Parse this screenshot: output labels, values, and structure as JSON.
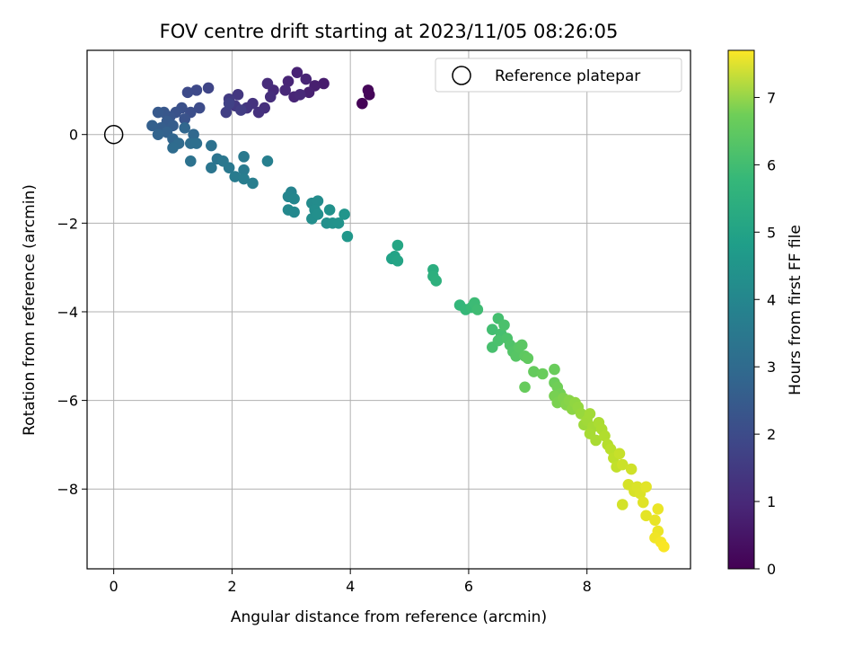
{
  "chart_data": {
    "type": "scatter",
    "title": "FOV centre drift starting at 2023/11/05 08:26:05",
    "xlabel": "Angular distance from reference (arcmin)",
    "ylabel": "Rotation from reference (arcmin)",
    "colorbar_label": "Hours from first FF file",
    "xlim": [
      -0.45,
      9.75
    ],
    "ylim": [
      -9.8,
      1.9
    ],
    "x_ticks": [
      0,
      2,
      4,
      6,
      8
    ],
    "y_ticks": [
      0,
      -2,
      -4,
      -6,
      -8
    ],
    "colorbar_range": [
      0,
      7.7
    ],
    "colorbar_ticks": [
      0,
      1,
      2,
      3,
      4,
      5,
      6,
      7
    ],
    "colormap": "viridis",
    "grid": true,
    "legend": {
      "position": "top-right",
      "entries": [
        "Reference platepar"
      ]
    },
    "reference_point": {
      "x": 0,
      "y": 0
    },
    "points": [
      {
        "x": 4.2,
        "y": 0.7,
        "t": 0.05
      },
      {
        "x": 4.32,
        "y": 0.9,
        "t": 0.1
      },
      {
        "x": 4.3,
        "y": 1.0,
        "t": 0.12
      },
      {
        "x": 3.55,
        "y": 1.15,
        "t": 0.6
      },
      {
        "x": 3.4,
        "y": 1.1,
        "t": 0.65
      },
      {
        "x": 3.3,
        "y": 0.95,
        "t": 0.7
      },
      {
        "x": 3.1,
        "y": 1.4,
        "t": 0.75
      },
      {
        "x": 3.25,
        "y": 1.25,
        "t": 0.78
      },
      {
        "x": 2.95,
        "y": 1.2,
        "t": 0.8
      },
      {
        "x": 3.05,
        "y": 0.85,
        "t": 0.82
      },
      {
        "x": 2.9,
        "y": 1.0,
        "t": 0.85
      },
      {
        "x": 3.15,
        "y": 0.9,
        "t": 0.88
      },
      {
        "x": 2.7,
        "y": 1.0,
        "t": 0.9
      },
      {
        "x": 2.6,
        "y": 1.15,
        "t": 0.95
      },
      {
        "x": 2.65,
        "y": 0.85,
        "t": 1.0
      },
      {
        "x": 2.55,
        "y": 0.6,
        "t": 1.05
      },
      {
        "x": 2.45,
        "y": 0.5,
        "t": 1.1
      },
      {
        "x": 2.35,
        "y": 0.7,
        "t": 1.15
      },
      {
        "x": 2.25,
        "y": 0.6,
        "t": 1.2
      },
      {
        "x": 2.1,
        "y": 0.9,
        "t": 1.25
      },
      {
        "x": 2.05,
        "y": 0.65,
        "t": 1.3
      },
      {
        "x": 1.95,
        "y": 0.8,
        "t": 1.35
      },
      {
        "x": 2.15,
        "y": 0.55,
        "t": 1.4
      },
      {
        "x": 1.9,
        "y": 0.5,
        "t": 1.45
      },
      {
        "x": 1.95,
        "y": 0.7,
        "t": 1.5
      },
      {
        "x": 1.6,
        "y": 1.05,
        "t": 1.6
      },
      {
        "x": 1.4,
        "y": 1.0,
        "t": 1.7
      },
      {
        "x": 1.25,
        "y": 0.95,
        "t": 1.75
      },
      {
        "x": 1.45,
        "y": 0.6,
        "t": 1.8
      },
      {
        "x": 1.3,
        "y": 0.5,
        "t": 1.85
      },
      {
        "x": 1.15,
        "y": 0.6,
        "t": 1.9
      },
      {
        "x": 1.05,
        "y": 0.5,
        "t": 1.95
      },
      {
        "x": 1.2,
        "y": 0.35,
        "t": 2.0
      },
      {
        "x": 0.95,
        "y": 0.4,
        "t": 2.05
      },
      {
        "x": 0.85,
        "y": 0.5,
        "t": 2.1
      },
      {
        "x": 0.75,
        "y": 0.5,
        "t": 2.15
      },
      {
        "x": 0.9,
        "y": 0.3,
        "t": 2.2
      },
      {
        "x": 1.0,
        "y": 0.2,
        "t": 2.25
      },
      {
        "x": 0.8,
        "y": 0.15,
        "t": 2.3
      },
      {
        "x": 0.65,
        "y": 0.2,
        "t": 2.35
      },
      {
        "x": 0.9,
        "y": 0.05,
        "t": 2.4
      },
      {
        "x": 0.75,
        "y": 0.0,
        "t": 2.45
      },
      {
        "x": 1.0,
        "y": -0.1,
        "t": 2.5
      },
      {
        "x": 1.2,
        "y": 0.15,
        "t": 2.55
      },
      {
        "x": 1.35,
        "y": 0.0,
        "t": 2.6
      },
      {
        "x": 1.1,
        "y": -0.2,
        "t": 2.65
      },
      {
        "x": 1.0,
        "y": -0.3,
        "t": 2.7
      },
      {
        "x": 1.3,
        "y": -0.2,
        "t": 2.75
      },
      {
        "x": 1.4,
        "y": -0.2,
        "t": 2.8
      },
      {
        "x": 1.65,
        "y": -0.25,
        "t": 2.85
      },
      {
        "x": 1.3,
        "y": -0.6,
        "t": 2.9
      },
      {
        "x": 1.75,
        "y": -0.55,
        "t": 2.95
      },
      {
        "x": 1.65,
        "y": -0.75,
        "t": 3.0
      },
      {
        "x": 1.85,
        "y": -0.6,
        "t": 3.05
      },
      {
        "x": 1.95,
        "y": -0.75,
        "t": 3.1
      },
      {
        "x": 2.2,
        "y": -0.5,
        "t": 3.12
      },
      {
        "x": 2.2,
        "y": -0.8,
        "t": 3.15
      },
      {
        "x": 2.05,
        "y": -0.95,
        "t": 3.2
      },
      {
        "x": 2.2,
        "y": -1.0,
        "t": 3.25
      },
      {
        "x": 2.35,
        "y": -1.1,
        "t": 3.3
      },
      {
        "x": 2.6,
        "y": -0.6,
        "t": 3.32
      },
      {
        "x": 3.0,
        "y": -1.3,
        "t": 3.45
      },
      {
        "x": 2.95,
        "y": -1.4,
        "t": 3.5
      },
      {
        "x": 3.05,
        "y": -1.45,
        "t": 3.55
      },
      {
        "x": 2.95,
        "y": -1.7,
        "t": 3.6
      },
      {
        "x": 3.05,
        "y": -1.75,
        "t": 3.62
      },
      {
        "x": 3.35,
        "y": -1.55,
        "t": 3.7
      },
      {
        "x": 3.45,
        "y": -1.5,
        "t": 3.72
      },
      {
        "x": 3.4,
        "y": -1.7,
        "t": 3.75
      },
      {
        "x": 3.35,
        "y": -1.9,
        "t": 3.8
      },
      {
        "x": 3.45,
        "y": -1.8,
        "t": 3.82
      },
      {
        "x": 3.6,
        "y": -2.0,
        "t": 3.85
      },
      {
        "x": 3.65,
        "y": -1.7,
        "t": 3.88
      },
      {
        "x": 3.7,
        "y": -2.0,
        "t": 3.9
      },
      {
        "x": 3.8,
        "y": -2.0,
        "t": 3.95
      },
      {
        "x": 3.9,
        "y": -1.8,
        "t": 4.0
      },
      {
        "x": 3.95,
        "y": -2.3,
        "t": 4.05
      },
      {
        "x": 4.7,
        "y": -2.8,
        "t": 4.4
      },
      {
        "x": 4.75,
        "y": -2.75,
        "t": 4.45
      },
      {
        "x": 4.8,
        "y": -2.85,
        "t": 4.5
      },
      {
        "x": 4.8,
        "y": -2.5,
        "t": 4.55
      },
      {
        "x": 5.4,
        "y": -3.05,
        "t": 4.8
      },
      {
        "x": 5.4,
        "y": -3.2,
        "t": 4.85
      },
      {
        "x": 5.45,
        "y": -3.3,
        "t": 4.9
      },
      {
        "x": 5.85,
        "y": -3.85,
        "t": 5.1
      },
      {
        "x": 5.95,
        "y": -3.95,
        "t": 5.15
      },
      {
        "x": 6.05,
        "y": -3.9,
        "t": 5.2
      },
      {
        "x": 6.1,
        "y": -3.8,
        "t": 5.25
      },
      {
        "x": 6.15,
        "y": -3.95,
        "t": 5.3
      },
      {
        "x": 6.4,
        "y": -4.4,
        "t": 5.35
      },
      {
        "x": 6.5,
        "y": -4.15,
        "t": 5.38
      },
      {
        "x": 6.55,
        "y": -4.5,
        "t": 5.4
      },
      {
        "x": 6.4,
        "y": -4.8,
        "t": 5.42
      },
      {
        "x": 6.5,
        "y": -4.65,
        "t": 5.45
      },
      {
        "x": 6.6,
        "y": -4.3,
        "t": 5.48
      },
      {
        "x": 6.65,
        "y": -4.6,
        "t": 5.5
      },
      {
        "x": 6.7,
        "y": -4.75,
        "t": 5.55
      },
      {
        "x": 6.75,
        "y": -4.9,
        "t": 5.6
      },
      {
        "x": 6.8,
        "y": -5.0,
        "t": 5.65
      },
      {
        "x": 6.85,
        "y": -4.8,
        "t": 5.68
      },
      {
        "x": 6.9,
        "y": -4.75,
        "t": 5.7
      },
      {
        "x": 6.95,
        "y": -5.0,
        "t": 5.75
      },
      {
        "x": 7.0,
        "y": -5.05,
        "t": 5.8
      },
      {
        "x": 7.1,
        "y": -5.35,
        "t": 5.85
      },
      {
        "x": 6.95,
        "y": -5.7,
        "t": 5.88
      },
      {
        "x": 7.25,
        "y": -5.4,
        "t": 5.9
      },
      {
        "x": 7.45,
        "y": -5.3,
        "t": 5.92
      },
      {
        "x": 7.45,
        "y": -5.6,
        "t": 5.95
      },
      {
        "x": 7.5,
        "y": -5.7,
        "t": 6.0
      },
      {
        "x": 7.55,
        "y": -5.85,
        "t": 6.05
      },
      {
        "x": 7.45,
        "y": -5.9,
        "t": 6.1
      },
      {
        "x": 7.5,
        "y": -6.05,
        "t": 6.15
      },
      {
        "x": 7.6,
        "y": -5.95,
        "t": 6.2
      },
      {
        "x": 7.65,
        "y": -6.1,
        "t": 6.25
      },
      {
        "x": 7.7,
        "y": -6.0,
        "t": 6.3
      },
      {
        "x": 7.75,
        "y": -6.2,
        "t": 6.35
      },
      {
        "x": 7.8,
        "y": -6.05,
        "t": 6.4
      },
      {
        "x": 7.85,
        "y": -6.15,
        "t": 6.45
      },
      {
        "x": 7.9,
        "y": -6.3,
        "t": 6.5
      },
      {
        "x": 7.95,
        "y": -6.55,
        "t": 6.55
      },
      {
        "x": 8.0,
        "y": -6.45,
        "t": 6.6
      },
      {
        "x": 8.05,
        "y": -6.3,
        "t": 6.62
      },
      {
        "x": 8.1,
        "y": -6.6,
        "t": 6.65
      },
      {
        "x": 8.05,
        "y": -6.75,
        "t": 6.68
      },
      {
        "x": 8.15,
        "y": -6.9,
        "t": 6.7
      },
      {
        "x": 8.2,
        "y": -6.5,
        "t": 6.72
      },
      {
        "x": 8.25,
        "y": -6.65,
        "t": 6.75
      },
      {
        "x": 8.3,
        "y": -6.8,
        "t": 6.8
      },
      {
        "x": 8.35,
        "y": -7.0,
        "t": 6.85
      },
      {
        "x": 8.4,
        "y": -7.1,
        "t": 6.9
      },
      {
        "x": 8.45,
        "y": -7.3,
        "t": 6.95
      },
      {
        "x": 8.5,
        "y": -7.5,
        "t": 7.0
      },
      {
        "x": 8.55,
        "y": -7.2,
        "t": 7.05
      },
      {
        "x": 8.6,
        "y": -7.45,
        "t": 7.1
      },
      {
        "x": 8.75,
        "y": -7.55,
        "t": 7.15
      },
      {
        "x": 8.6,
        "y": -8.35,
        "t": 7.2
      },
      {
        "x": 8.7,
        "y": -7.9,
        "t": 7.22
      },
      {
        "x": 8.8,
        "y": -8.05,
        "t": 7.25
      },
      {
        "x": 8.85,
        "y": -7.95,
        "t": 7.28
      },
      {
        "x": 8.9,
        "y": -8.1,
        "t": 7.3
      },
      {
        "x": 8.95,
        "y": -8.3,
        "t": 7.35
      },
      {
        "x": 9.0,
        "y": -7.95,
        "t": 7.38
      },
      {
        "x": 9.0,
        "y": -8.6,
        "t": 7.4
      },
      {
        "x": 9.15,
        "y": -8.7,
        "t": 7.45
      },
      {
        "x": 9.2,
        "y": -8.45,
        "t": 7.48
      },
      {
        "x": 9.2,
        "y": -8.95,
        "t": 7.5
      },
      {
        "x": 9.15,
        "y": -9.1,
        "t": 7.55
      },
      {
        "x": 9.25,
        "y": -9.2,
        "t": 7.6
      },
      {
        "x": 9.3,
        "y": -9.3,
        "t": 7.65
      }
    ]
  }
}
